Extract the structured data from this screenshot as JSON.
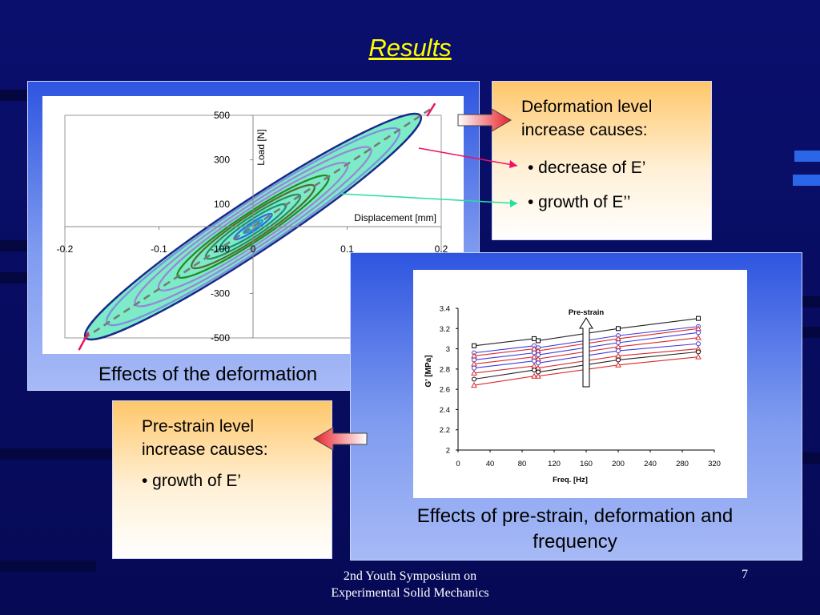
{
  "title": "Results",
  "colors": {
    "background": "#0a0f6e",
    "title": "#ffff00",
    "panel": "#2e55e0",
    "card_top": "#ffc76a"
  },
  "deformation_card": {
    "heading_line1": "Deformation level",
    "heading_line2": "increase causes:",
    "bullet1": "• decrease of E’",
    "bullet2": "• growth of E’’"
  },
  "prestrain_card": {
    "heading_line1": "Pre-strain level",
    "heading_line2": "increase causes:",
    "bullet1": "• growth of E’"
  },
  "captions": {
    "hysteresis": "Effects of the deformation",
    "prestrain_line1": "Effects of pre-strain, deformation and",
    "prestrain_line2": "frequency"
  },
  "footer": {
    "line1": "2nd Youth Symposium on",
    "line2": "Experimental Solid Mechanics",
    "page_number": "7"
  },
  "chart_data": [
    {
      "type": "line",
      "xlabel": "Displacement [mm]",
      "ylabel": "Load [N]",
      "xlim": [
        -0.2,
        0.2
      ],
      "ylim": [
        -500,
        500
      ],
      "x_ticks": [
        "-0.2",
        "-0.1",
        "0",
        "0.1",
        "0.2"
      ],
      "y_ticks": [
        "500",
        "300",
        "100",
        "-100",
        "-300",
        "-500"
      ],
      "loops": [
        {
          "amplitude_mm": 0.01,
          "load_amplitude": 28,
          "width": 6,
          "color": "#1aa0d0"
        },
        {
          "amplitude_mm": 0.02,
          "load_amplitude": 56,
          "width": 10,
          "color": "#2a6fd8"
        },
        {
          "amplitude_mm": 0.035,
          "load_amplitude": 98,
          "width": 17,
          "color": "#1a8f7a"
        },
        {
          "amplitude_mm": 0.05,
          "load_amplitude": 140,
          "width": 24,
          "color": "#2e8b57"
        },
        {
          "amplitude_mm": 0.065,
          "load_amplitude": 182,
          "width": 30,
          "color": "#556b2f"
        },
        {
          "amplitude_mm": 0.08,
          "load_amplitude": 224,
          "width": 35,
          "color": "#228b22"
        },
        {
          "amplitude_mm": 0.1,
          "load_amplitude": 280,
          "width": 42,
          "color": "#9a86d8"
        },
        {
          "amplitude_mm": 0.125,
          "load_amplitude": 350,
          "width": 50,
          "color": "#9a86d8"
        },
        {
          "amplitude_mm": 0.155,
          "load_amplitude": 434,
          "width": 58,
          "color": "#7f8fe0"
        },
        {
          "amplitude_mm": 0.178,
          "load_amplitude": 498,
          "width": 63,
          "color": "#1a2a8a"
        }
      ],
      "trend_line": {
        "x": [
          -0.18,
          0.19
        ],
        "y": [
          -504,
          532
        ]
      }
    },
    {
      "type": "line",
      "title": "Pre-strain",
      "xlabel": "Freq. [Hz]",
      "ylabel": "G' [MPa]",
      "xlim": [
        0,
        320
      ],
      "ylim": [
        2,
        3.4
      ],
      "x_ticks": [
        "0",
        "40",
        "80",
        "120",
        "160",
        "200",
        "240",
        "280",
        "320"
      ],
      "y_ticks": [
        "3.4",
        "3.2",
        "3",
        "2.8",
        "2.6",
        "2.4",
        "2.2",
        "2"
      ],
      "x": [
        20,
        95,
        100,
        200,
        300
      ],
      "series": [
        {
          "values": [
            3.03,
            3.1,
            3.08,
            3.2,
            3.3
          ],
          "color": "#000000",
          "marker": "square"
        },
        {
          "values": [
            2.96,
            3.03,
            3.01,
            3.13,
            3.22
          ],
          "color": "#3b3bd9",
          "marker": "circle"
        },
        {
          "values": [
            2.93,
            3.0,
            2.98,
            3.1,
            3.2
          ],
          "color": "#d92a2a",
          "marker": "triangle"
        },
        {
          "values": [
            2.89,
            2.96,
            2.94,
            3.06,
            3.16
          ],
          "color": "#3b3bd9",
          "marker": "circle"
        },
        {
          "values": [
            2.85,
            2.92,
            2.9,
            3.02,
            3.11
          ],
          "color": "#d92a2a",
          "marker": "triangle"
        },
        {
          "values": [
            2.81,
            2.88,
            2.86,
            2.98,
            3.05
          ],
          "color": "#3b3bd9",
          "marker": "circle"
        },
        {
          "values": [
            2.76,
            2.83,
            2.81,
            2.93,
            3.0
          ],
          "color": "#d92a2a",
          "marker": "triangle"
        },
        {
          "values": [
            2.7,
            2.79,
            2.77,
            2.89,
            2.97
          ],
          "color": "#000000",
          "marker": "circle"
        },
        {
          "values": [
            2.64,
            2.73,
            2.73,
            2.84,
            2.92
          ],
          "color": "#d92a2a",
          "marker": "triangle"
        }
      ]
    }
  ]
}
